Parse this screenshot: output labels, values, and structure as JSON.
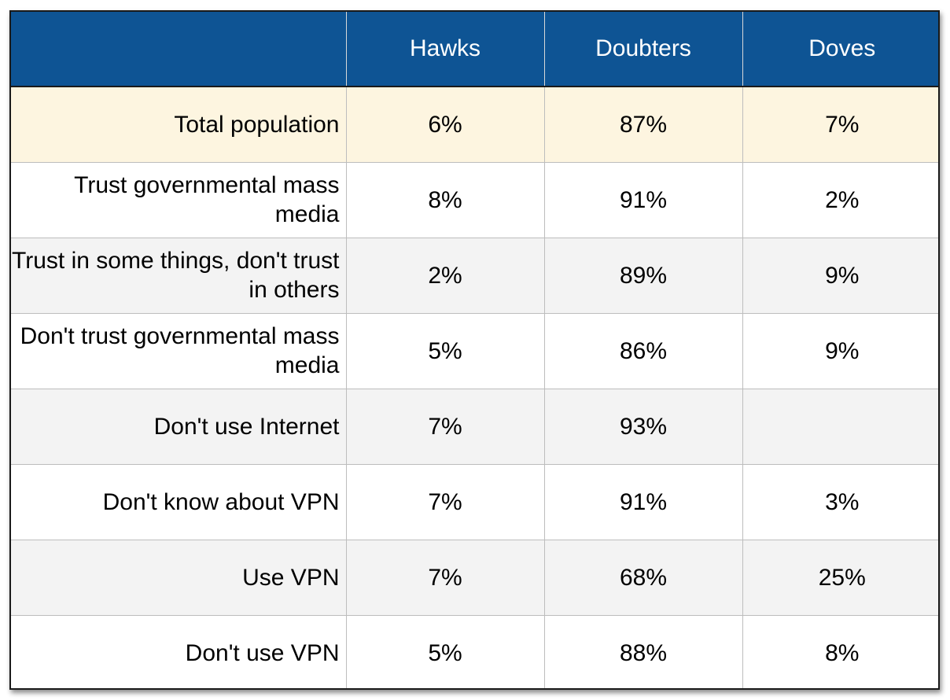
{
  "chart_data": {
    "type": "table",
    "columns": [
      "",
      "Hawks",
      "Doubters",
      "Doves"
    ],
    "rows": [
      {
        "label": "Total population",
        "values": [
          "6%",
          "87%",
          "7%"
        ],
        "style": "highlight"
      },
      {
        "label": "Trust governmental mass media",
        "values": [
          "8%",
          "91%",
          "2%"
        ],
        "style": "plain"
      },
      {
        "label": "Trust in some things, don't trust in others",
        "values": [
          "2%",
          "89%",
          "9%"
        ],
        "style": "shade"
      },
      {
        "label": "Don't trust governmental mass media",
        "values": [
          "5%",
          "86%",
          "9%"
        ],
        "style": "plain"
      },
      {
        "label": "Don't use Internet",
        "values": [
          "7%",
          "93%",
          ""
        ],
        "style": "shade"
      },
      {
        "label": "Don't know about VPN",
        "values": [
          "7%",
          "91%",
          "3%"
        ],
        "style": "plain"
      },
      {
        "label": "Use VPN",
        "values": [
          "7%",
          "68%",
          "25%"
        ],
        "style": "shade"
      },
      {
        "label": "Don't use VPN",
        "values": [
          "5%",
          "88%",
          "8%"
        ],
        "style": "plain"
      }
    ]
  },
  "colors": {
    "header_bg": "#0e5494",
    "header_text": "#ffffff",
    "highlight_row": "#fdf5e0",
    "shaded_row": "#f3f3f3"
  }
}
